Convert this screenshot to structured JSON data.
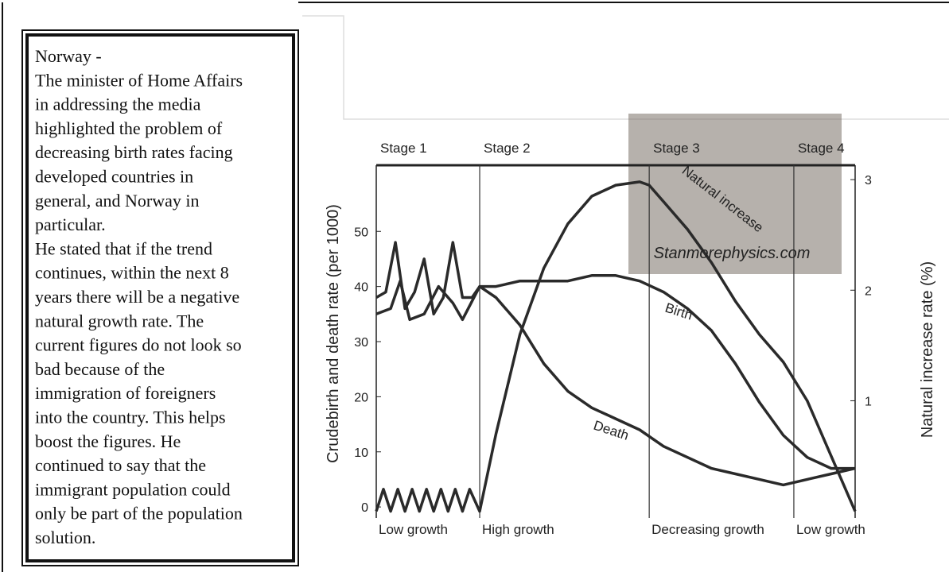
{
  "text_box": {
    "lines": [
      "Norway -",
      "The minister of Home Affairs",
      "in addressing the media",
      "highlighted the problem of",
      "decreasing birth rates facing",
      "developed countries in",
      "general, and Norway in",
      "particular.",
      "He stated that if the trend",
      "continues, within the next 8",
      "years there will be a negative",
      "natural growth rate. The",
      "current figures do not look so",
      "bad because of the",
      "immigration of foreigners",
      "into the country. This helps",
      "boost the figures. He",
      "continued to say that the",
      "immigrant population could",
      "only be part of the population",
      "solution."
    ]
  },
  "chart_data": {
    "type": "line",
    "ylabel": "Crudebirth and death rate (per 1000)",
    "y2label": "Natural increase rate (%)",
    "stage_labels": [
      "Stage 1",
      "Stage 2",
      "Stage 3",
      "Stage 4"
    ],
    "growth_labels": [
      "Low growth",
      "High growth",
      "Decreasing growth",
      "Low growth"
    ],
    "stage_boundaries": [
      21.6,
      57,
      87.2
    ],
    "annotations": [
      "Natural increase",
      "Birth",
      "Death"
    ],
    "watermark": "Stanmorephysics.com",
    "xlim": [
      0,
      100
    ],
    "ylim": [
      -2,
      62
    ],
    "yticks": [
      0,
      10,
      20,
      30,
      40,
      50
    ],
    "y2lim": [
      -0.06,
      3.13
    ],
    "y2ticks": [
      1,
      2,
      3
    ],
    "series": [
      {
        "name": "Birth",
        "color": "#2a2a2a",
        "x": [
          0,
          3,
          5,
          7,
          10,
          13,
          16,
          18,
          21.6,
          25,
          30,
          35,
          40,
          45,
          50,
          55,
          60,
          65,
          70,
          75,
          80,
          85,
          90,
          95,
          100
        ],
        "values": [
          35,
          36,
          41,
          34,
          35,
          40,
          37,
          34,
          40,
          40,
          41,
          41,
          41,
          42,
          42,
          41,
          39,
          36,
          32,
          26,
          19,
          13,
          9,
          7,
          7
        ]
      },
      {
        "name": "Death",
        "color": "#2a2a2a",
        "x": [
          0,
          2,
          4,
          6,
          8,
          10,
          12,
          14,
          16,
          18,
          20,
          21.6,
          25,
          30,
          35,
          40,
          45,
          50,
          55,
          60,
          65,
          70,
          75,
          80,
          85,
          90,
          95,
          100
        ],
        "values": [
          38,
          39,
          48,
          36,
          39,
          45,
          35,
          38,
          48,
          38,
          38,
          40,
          38,
          33,
          26,
          21,
          18,
          16,
          14,
          11,
          9,
          7,
          6,
          5,
          4,
          5,
          6,
          7
        ]
      },
      {
        "name": "Natural increase",
        "color": "#2a2a2a",
        "axis": "y2",
        "x": [
          0,
          1.5,
          3,
          4.5,
          6,
          7.5,
          9,
          10.5,
          12,
          13.5,
          15,
          16.5,
          18,
          19.5,
          21.6,
          25,
          30,
          35,
          40,
          45,
          50,
          55,
          57,
          60,
          65,
          70,
          75,
          80,
          85,
          90,
          95,
          100
        ],
        "values": [
          0,
          0.2,
          0,
          0.2,
          0,
          0.2,
          0,
          0.2,
          0,
          0.2,
          0,
          0.2,
          0,
          0.2,
          0,
          0.7,
          1.6,
          2.2,
          2.6,
          2.85,
          2.95,
          2.98,
          2.95,
          2.8,
          2.55,
          2.25,
          1.9,
          1.6,
          1.35,
          1.0,
          0.5,
          0
        ]
      }
    ]
  }
}
